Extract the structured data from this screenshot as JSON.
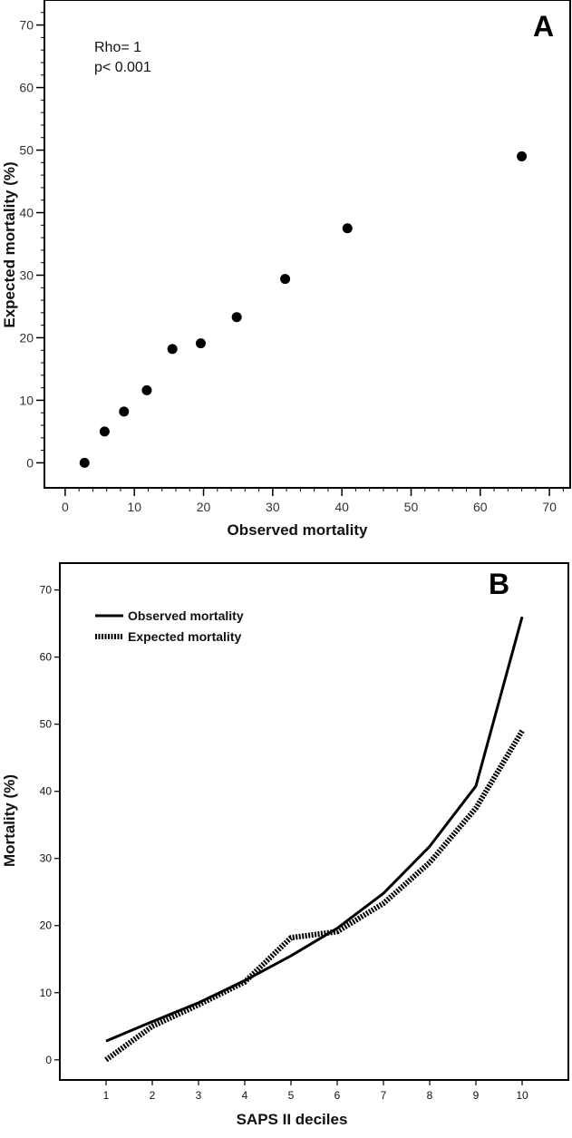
{
  "chart_data": [
    {
      "type": "scatter",
      "panel_label": "A",
      "xlabel": "Observed mortality",
      "ylabel": "Expected mortality (%)",
      "xlim": [
        -3,
        73
      ],
      "ylim": [
        -4,
        74
      ],
      "xticks": [
        0,
        10,
        20,
        30,
        40,
        50,
        60,
        70
      ],
      "yticks": [
        0,
        10,
        20,
        30,
        40,
        50,
        60,
        70
      ],
      "annotations": [
        "Rho= 1",
        "p< 0.001"
      ],
      "points": [
        {
          "x": 2.8,
          "y": 0
        },
        {
          "x": 5.7,
          "y": 5
        },
        {
          "x": 8.5,
          "y": 8.2
        },
        {
          "x": 11.8,
          "y": 11.6
        },
        {
          "x": 15.5,
          "y": 18.2
        },
        {
          "x": 19.6,
          "y": 19.1
        },
        {
          "x": 24.8,
          "y": 23.3
        },
        {
          "x": 31.8,
          "y": 29.4
        },
        {
          "x": 40.8,
          "y": 37.5
        },
        {
          "x": 66,
          "y": 49
        }
      ],
      "grid": false
    },
    {
      "type": "line",
      "panel_label": "B",
      "xlabel": "SAPS II deciles",
      "ylabel": "Mortality (%)",
      "x": [
        1,
        2,
        3,
        4,
        5,
        6,
        7,
        8,
        9,
        10
      ],
      "xlim": [
        0,
        11
      ],
      "ylim": [
        -3,
        74
      ],
      "xticks": [
        1,
        2,
        3,
        4,
        5,
        6,
        7,
        8,
        9,
        10
      ],
      "yticks": [
        0,
        10,
        20,
        30,
        40,
        50,
        60,
        70
      ],
      "series": [
        {
          "name": "Observed mortality",
          "style": "solid",
          "values": [
            2.8,
            5.7,
            8.5,
            11.8,
            15.5,
            19.6,
            24.8,
            31.8,
            40.8,
            66
          ]
        },
        {
          "name": "Expected mortality",
          "style": "dotted",
          "values": [
            0,
            5,
            8.2,
            11.6,
            18.2,
            19.1,
            23.3,
            29.4,
            37.5,
            49
          ]
        }
      ],
      "legend_position": "top-left",
      "grid": false
    }
  ]
}
